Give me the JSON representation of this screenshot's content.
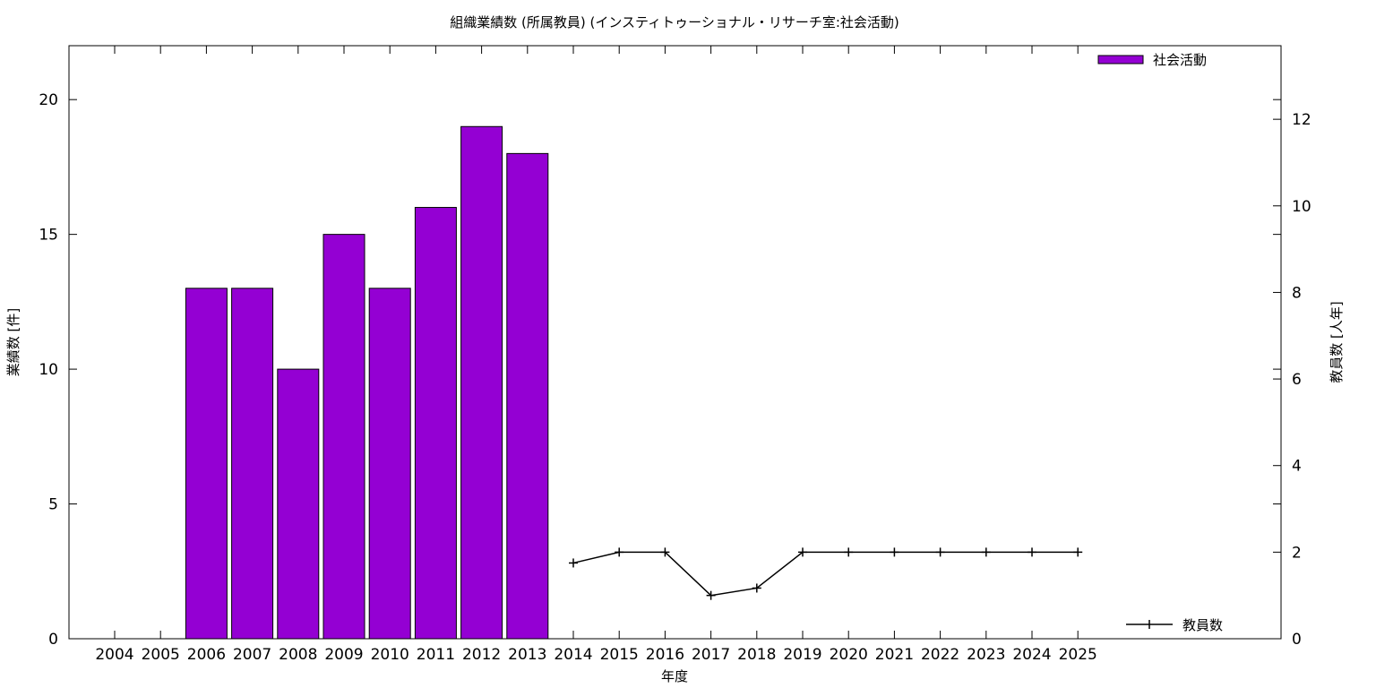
{
  "chart_data": {
    "type": "bar",
    "title": "組織業績数 (所属教員) (インスティトゥーショナル・リサーチ室:社会活動)",
    "xlabel": "年度",
    "ylabel": "業績数 [件]",
    "y2label": "教員数 [人年]",
    "categories": [
      "2004",
      "2005",
      "2006",
      "2007",
      "2008",
      "2009",
      "2010",
      "2011",
      "2012",
      "2013",
      "2014",
      "2015",
      "2016",
      "2017",
      "2018",
      "2019",
      "2020",
      "2021",
      "2022",
      "2023",
      "2024",
      "2025"
    ],
    "ylim": [
      0,
      22
    ],
    "yticks": [
      0,
      5,
      10,
      15,
      20
    ],
    "y2lim": [
      0,
      13.7
    ],
    "y2ticks": [
      0,
      2,
      4,
      6,
      8,
      10,
      12
    ],
    "series": [
      {
        "name": "社会活動",
        "kind": "bar",
        "axis": "left",
        "color": "#9400d3",
        "values": [
          0,
          0,
          13,
          13,
          10,
          15,
          13,
          16,
          19,
          18,
          null,
          null,
          null,
          null,
          null,
          null,
          null,
          null,
          null,
          null,
          null,
          null
        ]
      },
      {
        "name": "教員数",
        "kind": "line",
        "axis": "right",
        "color": "#000000",
        "values": [
          null,
          null,
          null,
          null,
          null,
          null,
          null,
          null,
          null,
          null,
          1.75,
          2,
          2,
          1,
          1.17,
          2,
          2,
          2,
          2,
          2,
          2,
          2
        ]
      }
    ],
    "legend": [
      "top-right",
      "bottom-right"
    ],
    "grid": false
  }
}
